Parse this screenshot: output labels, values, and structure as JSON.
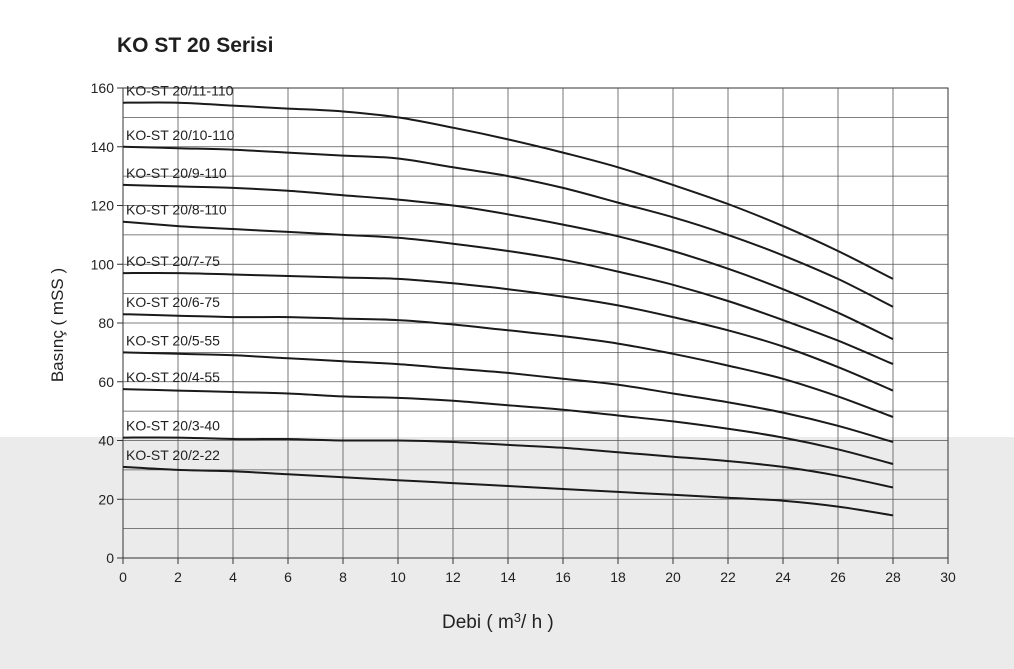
{
  "title": "KO ST 20 Serisi",
  "chart_data": {
    "type": "line",
    "title": "KO ST 20 Serisi",
    "xlabel": {
      "prefix": "Debi ( m",
      "sup": "3",
      "suffix": "/ h )"
    },
    "ylabel": "Basınç ( mSS )",
    "xlim": [
      0,
      30
    ],
    "ylim": [
      0,
      160
    ],
    "xticks": [
      0,
      2,
      4,
      6,
      8,
      10,
      12,
      14,
      16,
      18,
      20,
      22,
      24,
      26,
      28,
      30
    ],
    "yticks": [
      0,
      20,
      40,
      60,
      80,
      100,
      120,
      140,
      160
    ],
    "grid": true,
    "x": [
      0,
      2,
      4,
      6,
      8,
      10,
      12,
      14,
      16,
      18,
      20,
      22,
      24,
      26,
      28
    ],
    "series": [
      {
        "name": "KO-ST 20/11-110",
        "values": [
          155,
          155,
          154,
          153,
          152,
          150,
          146.5,
          142.5,
          138,
          133,
          127,
          120.5,
          113,
          104.5,
          95
        ]
      },
      {
        "name": "KO-ST 20/10-110",
        "values": [
          140,
          139.5,
          139,
          138,
          137,
          136,
          133,
          130,
          126,
          121,
          116,
          110,
          103,
          95,
          85.5
        ]
      },
      {
        "name": "KO-ST 20/9-110",
        "values": [
          127,
          126.5,
          126,
          125,
          123.5,
          122,
          120,
          117,
          113.5,
          109.5,
          104.5,
          98.5,
          91.5,
          83.5,
          74.5
        ]
      },
      {
        "name": "KO-ST 20/8-110",
        "values": [
          114.5,
          113,
          112,
          111,
          110,
          109,
          107,
          104.5,
          101.5,
          97.5,
          93,
          87.5,
          81,
          74,
          66
        ]
      },
      {
        "name": "KO-ST 20/7-75",
        "values": [
          97,
          97,
          96.5,
          96,
          95.5,
          95,
          93.5,
          91.5,
          89,
          86,
          82,
          77.5,
          72,
          65,
          57
        ]
      },
      {
        "name": "KO-ST 20/6-75",
        "values": [
          83,
          82.5,
          82,
          82,
          81.5,
          81,
          79.5,
          77.5,
          75.5,
          73,
          69.5,
          65.5,
          61,
          55,
          48
        ]
      },
      {
        "name": "KO-ST 20/5-55",
        "values": [
          70,
          69.5,
          69,
          68,
          67,
          66,
          64.5,
          63,
          61,
          59,
          56,
          53,
          49.5,
          45,
          39.5
        ]
      },
      {
        "name": "KO-ST 20/4-55",
        "values": [
          57.5,
          57,
          56.5,
          56,
          55,
          54.5,
          53.5,
          52,
          50.5,
          48.5,
          46.5,
          44,
          41,
          37,
          32
        ]
      },
      {
        "name": "KO-ST 20/3-40",
        "values": [
          41,
          41,
          40.5,
          40.5,
          40,
          40,
          39.5,
          38.5,
          37.5,
          36,
          34.5,
          33,
          31,
          28,
          24
        ]
      },
      {
        "name": "KO-ST 20/2-22",
        "values": [
          31,
          30,
          29.5,
          28.5,
          27.5,
          26.5,
          25.5,
          24.5,
          23.5,
          22.5,
          21.5,
          20.5,
          19.5,
          17.5,
          14.5
        ]
      }
    ]
  }
}
